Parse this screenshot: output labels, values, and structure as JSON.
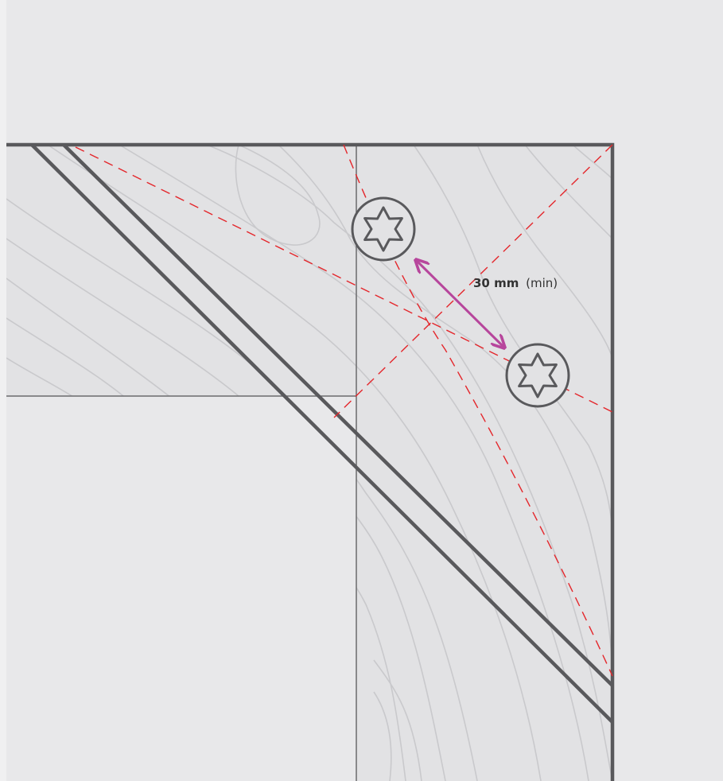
{
  "dimension": {
    "value": "30 mm",
    "qualifier": "(min)"
  }
}
